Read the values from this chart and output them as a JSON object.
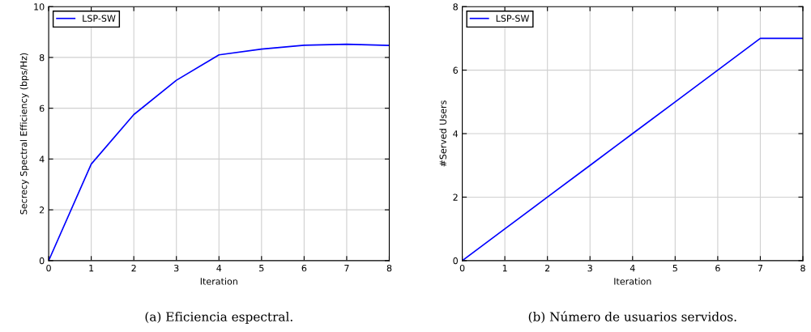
{
  "chart_data": [
    {
      "type": "line",
      "xlabel": "Iteration",
      "ylabel": "Secrecy Spectral Efficiency (bps/Hz)",
      "x": [
        0,
        1,
        2,
        3,
        4,
        5,
        6,
        7,
        8
      ],
      "series": [
        {
          "name": "LSP-SW",
          "color": "#0000ff",
          "values": [
            0,
            3.8,
            5.75,
            7.1,
            8.1,
            8.33,
            8.48,
            8.52,
            8.47
          ]
        }
      ],
      "xlim": [
        0,
        8
      ],
      "xticks": [
        0,
        1,
        2,
        3,
        4,
        5,
        6,
        7,
        8
      ],
      "ylim": [
        0,
        10
      ],
      "yticks": [
        0,
        2,
        4,
        6,
        8,
        10
      ],
      "grid": true,
      "legend": "top left",
      "annotations": [
        "(a) Eficiencia espectral."
      ]
    },
    {
      "type": "line",
      "xlabel": "Iteration",
      "ylabel": "#Served Users",
      "x": [
        0,
        1,
        2,
        3,
        4,
        5,
        6,
        7,
        8
      ],
      "series": [
        {
          "name": "LSP-SW",
          "color": "#0000ff",
          "values": [
            0,
            1,
            2,
            3,
            4,
            5,
            6,
            7,
            7
          ]
        }
      ],
      "xlim": [
        0,
        8
      ],
      "xticks": [
        0,
        1,
        2,
        3,
        4,
        5,
        6,
        7,
        8
      ],
      "ylim": [
        0,
        8
      ],
      "yticks": [
        0,
        2,
        4,
        6,
        8
      ],
      "grid": true,
      "legend": "top left",
      "annotations": [
        "(b) Número de usuarios servidos."
      ]
    }
  ]
}
